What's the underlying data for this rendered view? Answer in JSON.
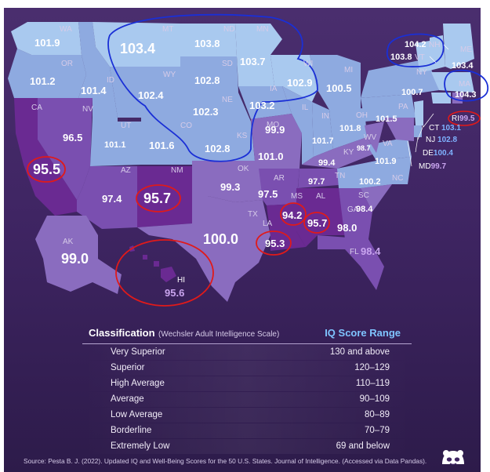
{
  "colors": {
    "background": "#3f2563",
    "very_light": "#a9c9ef",
    "light": "#8eaae0",
    "mid": "#8a6cbf",
    "purple": "#7a4fb0",
    "dark": "#6a2a92",
    "annotation_red": "#e01a1a",
    "annotation_blue": "#1a2fd6",
    "range_header": "#7fc4ff"
  },
  "states": [
    {
      "abbr": "WA",
      "value": "101.9"
    },
    {
      "abbr": "OR",
      "value": "101.2"
    },
    {
      "abbr": "CA",
      "value": "95.5"
    },
    {
      "abbr": "NV",
      "value": "96.5"
    },
    {
      "abbr": "ID",
      "value": "101.4"
    },
    {
      "abbr": "MT",
      "value": "103.4"
    },
    {
      "abbr": "WY",
      "value": "102.4"
    },
    {
      "abbr": "UT",
      "value": "101.1"
    },
    {
      "abbr": "CO",
      "value": "101.6"
    },
    {
      "abbr": "AZ",
      "value": "97.4"
    },
    {
      "abbr": "NM",
      "value": "95.7"
    },
    {
      "abbr": "ND",
      "value": "103.8"
    },
    {
      "abbr": "SD",
      "value": "102.8"
    },
    {
      "abbr": "NE",
      "value": "102.3"
    },
    {
      "abbr": "KS",
      "value": "102.8"
    },
    {
      "abbr": "OK",
      "value": "99.3"
    },
    {
      "abbr": "TX",
      "value": "100.0"
    },
    {
      "abbr": "MN",
      "value": "103.7"
    },
    {
      "abbr": "IA",
      "value": "103.2"
    },
    {
      "abbr": "MO",
      "value": "99.9"
    },
    {
      "abbr": "AR",
      "value": "97.5"
    },
    {
      "abbr": "LA",
      "value": "95.3"
    },
    {
      "abbr": "WI",
      "value": "102.9"
    },
    {
      "abbr": "IL",
      "value": "101.0"
    },
    {
      "abbr": "MI",
      "value": "100.5"
    },
    {
      "abbr": "IN",
      "value": "101.7"
    },
    {
      "abbr": "OH",
      "value": "101.8"
    },
    {
      "abbr": "KY",
      "value": "98.7"
    },
    {
      "abbr": "TN",
      "value": "97.7"
    },
    {
      "abbr": "MS",
      "value": "94.2"
    },
    {
      "abbr": "AL",
      "value": "95.7"
    },
    {
      "abbr": "GA",
      "value": "98.0"
    },
    {
      "abbr": "FL",
      "value": "98.4"
    },
    {
      "abbr": "SC",
      "value": "98.4"
    },
    {
      "abbr": "NC",
      "value": "100.2"
    },
    {
      "abbr": "VA",
      "value": "101.9"
    },
    {
      "abbr": "WV",
      "value": "99.4"
    },
    {
      "abbr": "PA",
      "value": "101.5"
    },
    {
      "abbr": "NY",
      "value": "100.7"
    },
    {
      "abbr": "VT",
      "value": "103.8"
    },
    {
      "abbr": "NH",
      "value": "104.2"
    },
    {
      "abbr": "ME",
      "value": "103.4"
    },
    {
      "abbr": "MA",
      "value": "104.3"
    },
    {
      "abbr": "RI",
      "value": "99.5"
    },
    {
      "abbr": "CT",
      "value": "103.1"
    },
    {
      "abbr": "NJ",
      "value": "102.8"
    },
    {
      "abbr": "DE",
      "value": "100.4"
    },
    {
      "abbr": "MD",
      "value": "99.7"
    },
    {
      "abbr": "AK",
      "value": "99.0"
    },
    {
      "abbr": "HI",
      "value": "95.6"
    }
  ],
  "legend": {
    "title": "Classification",
    "subtitle": "(Wechsler Adult Intelligence Scale)",
    "range_header": "IQ Score Range",
    "rows": [
      {
        "classification": "Very Superior",
        "range": "130 and above"
      },
      {
        "classification": "Superior",
        "range": "120–129"
      },
      {
        "classification": "High Average",
        "range": "110–119"
      },
      {
        "classification": "Average",
        "range": "90–109"
      },
      {
        "classification": "Low Average",
        "range": "80–89"
      },
      {
        "classification": "Borderline",
        "range": "70–79"
      },
      {
        "classification": "Extremely Low",
        "range": "69 and below"
      }
    ]
  },
  "source": "Source: Pesta B. J. (2022). Updated IQ and Well-Being Scores for the 50 U.S. States. Journal of Intelligence. (Accessed via Data Pandas).",
  "icons": {
    "logo": "data-pandas-logo-icon"
  }
}
